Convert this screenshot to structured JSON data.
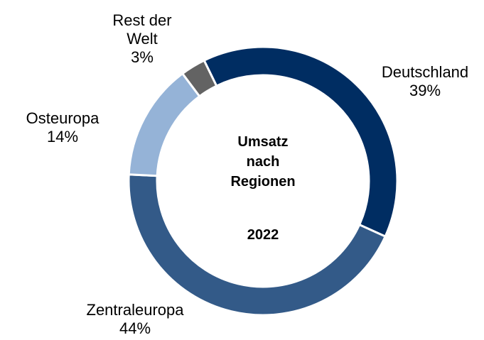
{
  "chart_data": {
    "type": "donut",
    "title": "Umsatz nach Regionen",
    "subtitle": "2022",
    "categories": [
      "Deutschland",
      "Zentraleuropa",
      "Osteuropa",
      "Rest der Welt"
    ],
    "values": [
      39,
      44,
      14,
      3
    ],
    "value_labels": [
      "39%",
      "44%",
      "14%",
      "3%"
    ],
    "colors": [
      "#002d62",
      "#335a88",
      "#95b3d7",
      "#636363"
    ]
  }
}
